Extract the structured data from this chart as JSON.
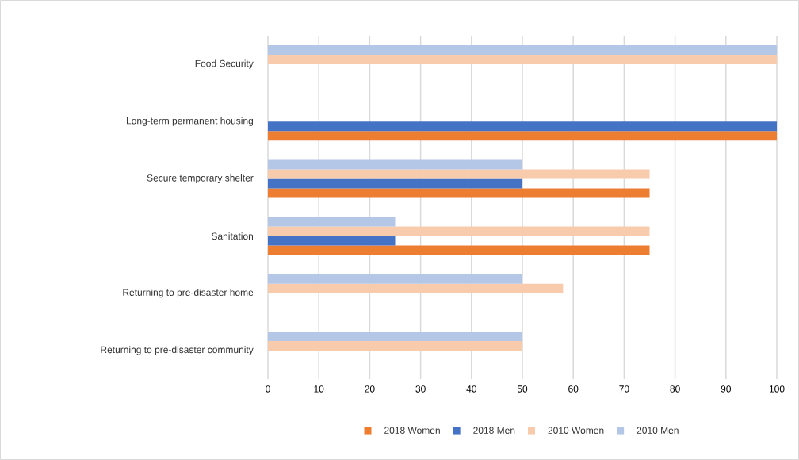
{
  "chart_data": {
    "type": "bar",
    "orientation": "horizontal",
    "categories": [
      "Food Security",
      "Long-term permanent housing",
      "Secure temporary shelter",
      "Sanitation",
      "Returning to pre-disaster home",
      "Returning to pre-disaster community"
    ],
    "series": [
      {
        "name": "2018 Women",
        "color": "#ed7d31",
        "values": [
          null,
          100,
          75,
          75,
          null,
          null
        ]
      },
      {
        "name": "2018 Men",
        "color": "#4472c4",
        "values": [
          null,
          100,
          50,
          25,
          null,
          null
        ]
      },
      {
        "name": "2010 Women",
        "color": "#f8cbad",
        "values": [
          100,
          null,
          75,
          75,
          58,
          50
        ]
      },
      {
        "name": "2010 Men",
        "color": "#b4c7e7",
        "values": [
          100,
          null,
          50,
          25,
          50,
          50
        ]
      }
    ],
    "xlim": [
      0,
      100
    ],
    "xticks": [
      0,
      10,
      20,
      30,
      40,
      50,
      60,
      70,
      80,
      90,
      100
    ],
    "grid": "x",
    "legend": "bottom"
  }
}
